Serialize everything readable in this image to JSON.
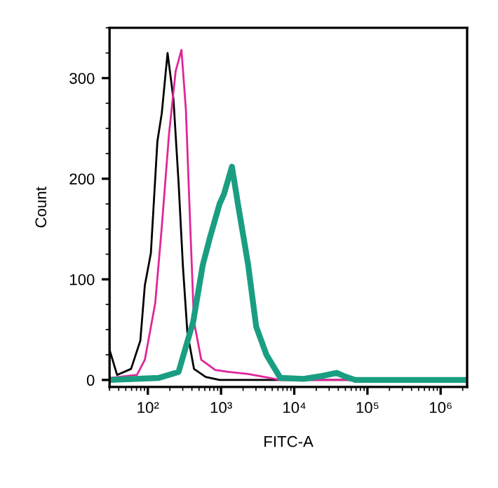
{
  "chart_data": {
    "type": "line",
    "xlabel": "FITC-A",
    "ylabel": "Count",
    "log": "x",
    "xlim": [
      30,
      2300000
    ],
    "xticks": [
      {
        "value": 100,
        "label": "10²"
      },
      {
        "value": 1000,
        "label": "10³"
      },
      {
        "value": 10000,
        "label": "10⁴"
      },
      {
        "value": 100000,
        "label": "10⁵"
      },
      {
        "value": 1000000,
        "label": "10⁶"
      }
    ],
    "ylim": [
      -7,
      350
    ],
    "yticks": [
      0,
      100,
      200,
      300
    ],
    "grid": false,
    "legend": false,
    "marker": "none",
    "line_style": "solid",
    "series": [
      {
        "color": "#000000",
        "x": [
          30,
          38,
          59,
          79,
          91,
          110,
          135,
          155,
          186,
          224,
          263,
          302,
          347,
          427,
          617,
          955,
          2300000
        ],
        "values": [
          30,
          5,
          11,
          39,
          94,
          126,
          237,
          265,
          325,
          279,
          196,
          112,
          47,
          11,
          3,
          0,
          0
        ]
      },
      {
        "color": "#e0259a",
        "x": [
          30,
          71,
          91,
          126,
          155,
          195,
          240,
          288,
          331,
          380,
          427,
          537,
          832,
          1260,
          2340,
          4680,
          6310,
          2300000
        ],
        "values": [
          2,
          5,
          20,
          76,
          152,
          245,
          307,
          328,
          269,
          152,
          58,
          20,
          10,
          8,
          6,
          2,
          0,
          0
        ]
      },
      {
        "color": "#1a9e82",
        "x": [
          30,
          141,
          263,
          417,
          562,
          708,
          955,
          1100,
          1410,
          1700,
          2340,
          3020,
          4170,
          6460,
          13500,
          24000,
          38000,
          51000,
          68000,
          2300000
        ],
        "values": [
          0,
          2,
          8,
          58,
          114,
          142,
          175,
          185,
          212,
          175,
          115,
          53,
          25,
          2,
          1,
          4,
          7,
          3,
          0,
          0
        ]
      }
    ]
  }
}
